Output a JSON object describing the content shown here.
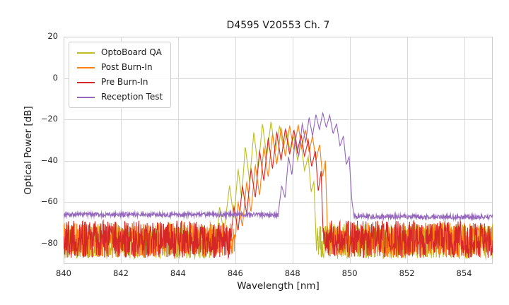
{
  "chart_data": {
    "type": "line",
    "title": "D4595 V20553 Ch. 7",
    "xlabel": "Wavelength [nm]",
    "ylabel": "Optical Power [dB]",
    "xlim": [
      840,
      855
    ],
    "ylim": [
      -90,
      20
    ],
    "xticks": [
      840,
      842,
      844,
      846,
      848,
      850,
      852,
      854
    ],
    "yticks": [
      20,
      0,
      -20,
      -40,
      -60,
      -80
    ],
    "grid": true,
    "grid_color": "#d9d9d9",
    "frame_color": "#cccccc",
    "background": "#ffffff",
    "legend_position": "upper left",
    "series": [
      {
        "name": "OptoBoard QA",
        "color": "#bcbd22",
        "noise_amp": 8.5,
        "floor": [
          [
            840,
            -79
          ],
          [
            855,
            -79
          ]
        ],
        "envelope": [
          [
            845.3,
            -88
          ],
          [
            845.45,
            -62
          ],
          [
            845.6,
            -75
          ],
          [
            845.8,
            -52
          ],
          [
            845.95,
            -68
          ],
          [
            846.1,
            -44
          ],
          [
            846.22,
            -58
          ],
          [
            846.35,
            -33
          ],
          [
            846.5,
            -50
          ],
          [
            846.65,
            -26
          ],
          [
            846.8,
            -44
          ],
          [
            846.95,
            -22
          ],
          [
            847.1,
            -38
          ],
          [
            847.25,
            -21
          ],
          [
            847.4,
            -36
          ],
          [
            847.55,
            -23
          ],
          [
            847.68,
            -34
          ],
          [
            847.8,
            -26
          ],
          [
            847.92,
            -36
          ],
          [
            848.05,
            -28
          ],
          [
            848.18,
            -40
          ],
          [
            848.3,
            -31
          ],
          [
            848.42,
            -45
          ],
          [
            848.55,
            -38
          ],
          [
            848.65,
            -55
          ],
          [
            848.75,
            -50
          ],
          [
            848.85,
            -88
          ]
        ]
      },
      {
        "name": "Post Burn-In",
        "color": "#ff7f0e",
        "noise_amp": 8.5,
        "floor": [
          [
            840,
            -78.5
          ],
          [
            855,
            -78.5
          ]
        ],
        "envelope": [
          [
            845.95,
            -88
          ],
          [
            846.1,
            -60
          ],
          [
            846.25,
            -72
          ],
          [
            846.4,
            -50
          ],
          [
            846.55,
            -65
          ],
          [
            846.7,
            -42
          ],
          [
            846.85,
            -57
          ],
          [
            847.0,
            -33
          ],
          [
            847.15,
            -48
          ],
          [
            847.3,
            -27
          ],
          [
            847.45,
            -42
          ],
          [
            847.6,
            -24
          ],
          [
            847.75,
            -38
          ],
          [
            847.9,
            -23
          ],
          [
            848.05,
            -35
          ],
          [
            848.2,
            -22.5
          ],
          [
            848.32,
            -34
          ],
          [
            848.45,
            -25
          ],
          [
            848.58,
            -36
          ],
          [
            848.7,
            -28
          ],
          [
            848.82,
            -40
          ],
          [
            848.95,
            -32
          ],
          [
            849.05,
            -48
          ],
          [
            849.15,
            -40
          ],
          [
            849.25,
            -88
          ]
        ]
      },
      {
        "name": "Pre Burn-In",
        "color": "#d62728",
        "noise_amp": 9,
        "floor": [
          [
            840,
            -78
          ],
          [
            855,
            -78
          ]
        ],
        "envelope": [
          [
            845.8,
            -88
          ],
          [
            845.95,
            -62
          ],
          [
            846.1,
            -74
          ],
          [
            846.25,
            -52
          ],
          [
            846.4,
            -66
          ],
          [
            846.55,
            -44
          ],
          [
            846.7,
            -58
          ],
          [
            846.85,
            -35
          ],
          [
            847.0,
            -50
          ],
          [
            847.15,
            -29
          ],
          [
            847.3,
            -44
          ],
          [
            847.45,
            -26
          ],
          [
            847.6,
            -40
          ],
          [
            847.75,
            -24.5
          ],
          [
            847.9,
            -37
          ],
          [
            848.05,
            -25
          ],
          [
            848.17,
            -36
          ],
          [
            848.3,
            -27
          ],
          [
            848.42,
            -38
          ],
          [
            848.55,
            -30
          ],
          [
            848.67,
            -43
          ],
          [
            848.8,
            -35
          ],
          [
            848.9,
            -55
          ],
          [
            849.0,
            -45
          ],
          [
            849.1,
            -88
          ]
        ]
      },
      {
        "name": "Reception Test",
        "color": "#9467bd",
        "noise_amp": 1.1,
        "floor": [
          [
            840,
            -66
          ],
          [
            849.5,
            -66.2
          ],
          [
            850.3,
            -67
          ],
          [
            855,
            -67.2
          ]
        ],
        "envelope": [
          [
            847.5,
            -66
          ],
          [
            847.62,
            -52
          ],
          [
            847.74,
            -58
          ],
          [
            847.86,
            -38
          ],
          [
            847.98,
            -47
          ],
          [
            848.1,
            -28
          ],
          [
            848.22,
            -38
          ],
          [
            848.34,
            -22
          ],
          [
            848.46,
            -31
          ],
          [
            848.58,
            -19
          ],
          [
            848.7,
            -28
          ],
          [
            848.82,
            -17.5
          ],
          [
            848.94,
            -25
          ],
          [
            849.06,
            -16.8
          ],
          [
            849.18,
            -24
          ],
          [
            849.3,
            -18
          ],
          [
            849.42,
            -27
          ],
          [
            849.54,
            -22
          ],
          [
            849.66,
            -33
          ],
          [
            849.78,
            -28
          ],
          [
            849.88,
            -42
          ],
          [
            849.98,
            -38
          ],
          [
            850.08,
            -60
          ],
          [
            850.15,
            -66.5
          ]
        ]
      }
    ]
  }
}
